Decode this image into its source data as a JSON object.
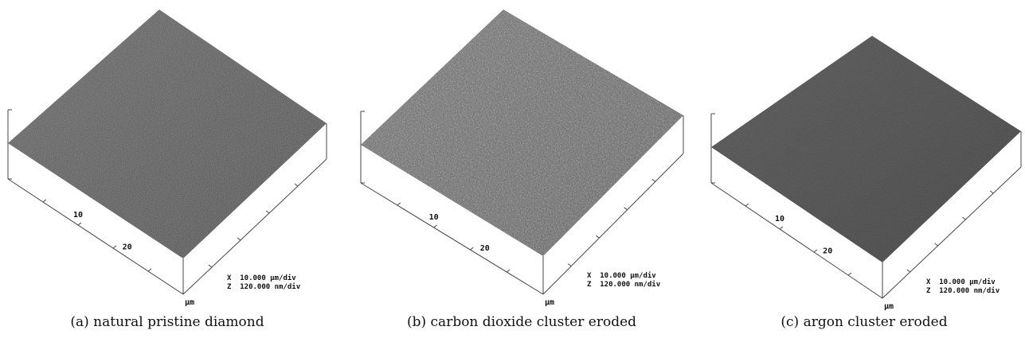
{
  "panels": [
    {
      "tick_labels": [
        "10",
        "20"
      ],
      "unit": "µm",
      "scale": [
        "X  10.000 µm/div",
        "Z  120.000 nm/div"
      ],
      "caption": "(a) natural pristine diamond"
    },
    {
      "tick_labels": [
        "10",
        "20"
      ],
      "unit": "µm",
      "scale": [
        "X  10.000 µm/div",
        "Z  120.000 nm/div"
      ],
      "caption": "(b) carbon dioxide cluster eroded"
    },
    {
      "tick_labels": [
        "10",
        "20"
      ],
      "unit": "µm",
      "scale": [
        "X  10.000 µm/div",
        "Z  120.000 nm/div"
      ],
      "caption": "(c) argon cluster eroded"
    }
  ]
}
